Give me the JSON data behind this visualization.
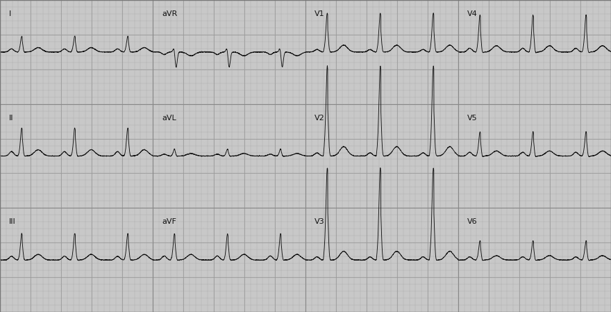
{
  "bg_color": "#c8c8c8",
  "grid_minor_color": "#aaaaaa",
  "grid_major_color": "#999999",
  "line_color": "#111111",
  "label_color": "#111111",
  "fig_width": 8.8,
  "fig_height": 4.49,
  "dpi": 100,
  "n_cols": 4,
  "n_rows": 3,
  "hr": 72,
  "fs": 500,
  "duration": 2.4,
  "amp_scale": 0.1,
  "font_size": 8,
  "leads_layout": [
    [
      "I",
      "aVR",
      "V1",
      "V4"
    ],
    [
      "II",
      "aVL",
      "V2",
      "V5"
    ],
    [
      "III",
      "aVF",
      "V3",
      "V6"
    ]
  ],
  "lead_params": {
    "I": {
      "r_amp": 0.45,
      "q_amp": 0.04,
      "s_amp": 0.04,
      "p_amp": 0.1,
      "t_amp": 0.14,
      "wpw": true,
      "wpw_slope": 0.25
    },
    "II": {
      "r_amp": 0.75,
      "q_amp": 0.04,
      "s_amp": 0.05,
      "p_amp": 0.14,
      "t_amp": 0.2,
      "wpw": true,
      "wpw_slope": 0.3
    },
    "III": {
      "r_amp": 0.7,
      "q_amp": 0.03,
      "s_amp": 0.04,
      "p_amp": 0.12,
      "t_amp": 0.18,
      "wpw": true,
      "wpw_slope": 0.3
    },
    "aVR": {
      "r_amp": 0.2,
      "q_amp": 0.0,
      "s_amp": 0.55,
      "p_amp": -0.08,
      "t_amp": -0.12,
      "wpw": false,
      "wpw_slope": 0.0
    },
    "aVL": {
      "r_amp": 0.22,
      "q_amp": 0.03,
      "s_amp": 0.03,
      "p_amp": 0.06,
      "t_amp": 0.08,
      "wpw": true,
      "wpw_slope": 0.18
    },
    "aVF": {
      "r_amp": 0.7,
      "q_amp": 0.04,
      "s_amp": 0.04,
      "p_amp": 0.13,
      "t_amp": 0.18,
      "wpw": true,
      "wpw_slope": 0.3
    },
    "V1": {
      "r_amp": 0.85,
      "q_amp": 0.0,
      "s_amp": 0.04,
      "p_amp": 0.08,
      "t_amp": 0.22,
      "wpw": true,
      "wpw_slope": 0.55
    },
    "V2": {
      "r_amp": 1.8,
      "q_amp": 0.0,
      "s_amp": 0.06,
      "p_amp": 0.1,
      "t_amp": 0.3,
      "wpw": true,
      "wpw_slope": 0.7
    },
    "V3": {
      "r_amp": 1.85,
      "q_amp": 0.0,
      "s_amp": 0.08,
      "p_amp": 0.1,
      "t_amp": 0.28,
      "wpw": true,
      "wpw_slope": 0.7
    },
    "V4": {
      "r_amp": 0.9,
      "q_amp": 0.04,
      "s_amp": 0.1,
      "p_amp": 0.12,
      "t_amp": 0.2,
      "wpw": true,
      "wpw_slope": 0.45
    },
    "V5": {
      "r_amp": 0.65,
      "q_amp": 0.06,
      "s_amp": 0.08,
      "p_amp": 0.12,
      "t_amp": 0.16,
      "wpw": true,
      "wpw_slope": 0.35
    },
    "V6": {
      "r_amp": 0.55,
      "q_amp": 0.06,
      "s_amp": 0.06,
      "p_amp": 0.1,
      "t_amp": 0.14,
      "wpw": true,
      "wpw_slope": 0.28
    }
  }
}
